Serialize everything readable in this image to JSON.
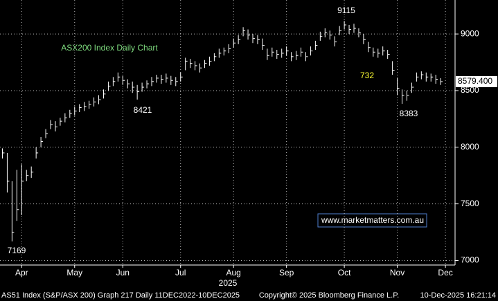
{
  "chart_data": {
    "type": "hlc",
    "title": "ASX200 Index Daily Chart",
    "annotations": [
      "9115",
      "8421",
      "7169",
      "732",
      "8383"
    ],
    "watermark": "www.marketmatters.com.au",
    "year_label": "2025",
    "last_price_label": "8579.400",
    "footer": [
      "AS51 Index (S&P/ASX 200) Graph 217 Daily 11DEC2022-10DEC2025",
      "Copyright© 2025 Bloomberg Finance L.P.",
      "10-Dec-2025 16:21:14"
    ],
    "color": "#ffffff",
    "grid": true,
    "xlim": [
      -0.5,
      94
    ],
    "xticks": [
      {
        "value": 4,
        "label": "Apr"
      },
      {
        "value": 15,
        "label": "May"
      },
      {
        "value": 25,
        "label": "Jun"
      },
      {
        "value": 37,
        "label": "Jul"
      },
      {
        "value": 48,
        "label": "Aug"
      },
      {
        "value": 59,
        "label": "Sep"
      },
      {
        "value": 71,
        "label": "Oct"
      },
      {
        "value": 82,
        "label": "Nov"
      },
      {
        "value": 92,
        "label": "Dec"
      }
    ],
    "ylim": [
      6960,
      9300
    ],
    "yticks": [
      7000,
      7500,
      8000,
      8500,
      9000
    ],
    "high": [
      7990,
      7950,
      7700,
      7800,
      7850,
      7800,
      7830,
      8000,
      8090,
      8160,
      8240,
      8230,
      8260,
      8300,
      8330,
      8360,
      8380,
      8400,
      8410,
      8440,
      8460,
      8510,
      8580,
      8620,
      8660,
      8630,
      8600,
      8580,
      8550,
      8570,
      8590,
      8620,
      8640,
      8640,
      8650,
      8630,
      8620,
      8660,
      8790,
      8780,
      8760,
      8740,
      8770,
      8800,
      8830,
      8870,
      8880,
      8910,
      8960,
      8990,
      9060,
      9040,
      9000,
      8990,
      8960,
      8870,
      8880,
      8860,
      8870,
      8890,
      8840,
      8850,
      8880,
      8840,
      8890,
      8940,
      9020,
      9050,
      9030,
      8980,
      9070,
      9115,
      9080,
      9090,
      9050,
      9000,
      8930,
      8880,
      8870,
      8890,
      8860,
      8760,
      8610,
      8510,
      8500,
      8570,
      8660,
      8670,
      8660,
      8650,
      8640,
      8610
    ],
    "low": [
      7900,
      7600,
      7169,
      7350,
      7400,
      7700,
      7730,
      7900,
      8000,
      8080,
      8160,
      8140,
      8190,
      8220,
      8260,
      8280,
      8310,
      8320,
      8340,
      8360,
      8380,
      8430,
      8500,
      8540,
      8580,
      8550,
      8520,
      8480,
      8421,
      8490,
      8520,
      8540,
      8570,
      8560,
      8570,
      8550,
      8540,
      8580,
      8680,
      8700,
      8680,
      8660,
      8700,
      8720,
      8760,
      8790,
      8810,
      8830,
      8880,
      8910,
      8980,
      8950,
      8920,
      8910,
      8860,
      8770,
      8800,
      8780,
      8790,
      8810,
      8760,
      8770,
      8800,
      8760,
      8810,
      8860,
      8940,
      8970,
      8950,
      8890,
      8990,
      9040,
      9000,
      9010,
      8970,
      8910,
      8840,
      8800,
      8790,
      8810,
      8780,
      8640,
      8460,
      8383,
      8410,
      8480,
      8580,
      8600,
      8580,
      8580,
      8560,
      8550
    ],
    "close": [
      7950,
      7700,
      7250,
      7450,
      7700,
      7750,
      7780,
      7950,
      8050,
      8120,
      8200,
      8180,
      8230,
      8260,
      8300,
      8320,
      8350,
      8360,
      8380,
      8400,
      8420,
      8470,
      8540,
      8580,
      8620,
      8590,
      8560,
      8530,
      8490,
      8530,
      8560,
      8580,
      8610,
      8600,
      8610,
      8590,
      8580,
      8620,
      8760,
      8740,
      8720,
      8700,
      8740,
      8760,
      8800,
      8830,
      8850,
      8870,
      8920,
      8950,
      9030,
      8990,
      8960,
      8950,
      8900,
      8810,
      8840,
      8820,
      8830,
      8850,
      8800,
      8810,
      8840,
      8800,
      8850,
      8900,
      8980,
      9010,
      8990,
      8930,
      9030,
      9080,
      9040,
      9050,
      9010,
      8950,
      8880,
      8840,
      8830,
      8850,
      8820,
      8680,
      8520,
      8460,
      8460,
      8530,
      8620,
      8640,
      8620,
      8620,
      8600,
      8579.4
    ]
  }
}
